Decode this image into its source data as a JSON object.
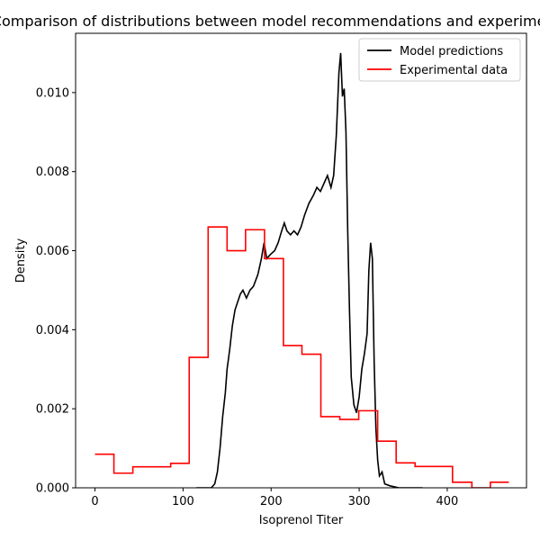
{
  "chart_data": {
    "type": "line",
    "title": "Comparison of distributions between model recommendations and experimental data",
    "xlabel": "Isoprenol Titer",
    "ylabel": "Density",
    "xlim": [
      -22,
      490
    ],
    "ylim": [
      0,
      0.0115
    ],
    "x_ticks": [
      0,
      100,
      200,
      300,
      400
    ],
    "x_tick_labels": [
      "0",
      "100",
      "200",
      "300",
      "400"
    ],
    "y_ticks": [
      0,
      0.002,
      0.004,
      0.006,
      0.008,
      0.01
    ],
    "y_tick_labels": [
      "0.000",
      "0.002",
      "0.004",
      "0.006",
      "0.008",
      "0.010"
    ],
    "grid": false,
    "legend_position": "upper right",
    "series": [
      {
        "name": "Model predictions",
        "color": "#000000",
        "style": "line",
        "points": [
          [
            115,
            0.0
          ],
          [
            132,
            0.0
          ],
          [
            136,
            0.0001
          ],
          [
            139,
            0.0004
          ],
          [
            142,
            0.001
          ],
          [
            145,
            0.0018
          ],
          [
            148,
            0.0024
          ],
          [
            150,
            0.003
          ],
          [
            153,
            0.0035
          ],
          [
            156,
            0.0041
          ],
          [
            159,
            0.0045
          ],
          [
            162,
            0.0047
          ],
          [
            165,
            0.0049
          ],
          [
            168,
            0.005
          ],
          [
            172,
            0.0048
          ],
          [
            176,
            0.005
          ],
          [
            180,
            0.0051
          ],
          [
            185,
            0.0054
          ],
          [
            189,
            0.0058
          ],
          [
            192,
            0.0062
          ],
          [
            195,
            0.0058
          ],
          [
            199,
            0.0059
          ],
          [
            204,
            0.006
          ],
          [
            208,
            0.0062
          ],
          [
            212,
            0.0065
          ],
          [
            215,
            0.0067
          ],
          [
            218,
            0.0065
          ],
          [
            222,
            0.0064
          ],
          [
            226,
            0.0065
          ],
          [
            230,
            0.0064
          ],
          [
            234,
            0.0066
          ],
          [
            238,
            0.0069
          ],
          [
            243,
            0.0072
          ],
          [
            248,
            0.0074
          ],
          [
            252,
            0.0076
          ],
          [
            256,
            0.0075
          ],
          [
            260,
            0.0077
          ],
          [
            264,
            0.0079
          ],
          [
            268,
            0.0076
          ],
          [
            271,
            0.0079
          ],
          [
            274,
            0.0089
          ],
          [
            277,
            0.0105
          ],
          [
            279,
            0.011
          ],
          [
            281,
            0.0099
          ],
          [
            283,
            0.0101
          ],
          [
            285,
            0.009
          ],
          [
            287,
            0.0065
          ],
          [
            289,
            0.0045
          ],
          [
            291,
            0.0028
          ],
          [
            294,
            0.0021
          ],
          [
            297,
            0.0019
          ],
          [
            300,
            0.0023
          ],
          [
            303,
            0.003
          ],
          [
            306,
            0.0034
          ],
          [
            309,
            0.0039
          ],
          [
            311,
            0.0055
          ],
          [
            313,
            0.0062
          ],
          [
            315,
            0.0058
          ],
          [
            317,
            0.0032
          ],
          [
            319,
            0.0015
          ],
          [
            321,
            0.0007
          ],
          [
            323,
            0.0003
          ],
          [
            326,
            0.0004
          ],
          [
            329,
            0.0001
          ],
          [
            335,
            5e-05
          ],
          [
            345,
            0.0
          ],
          [
            372,
            0.0
          ]
        ]
      },
      {
        "name": "Experimental data",
        "color": "#ff0000",
        "style": "step-post",
        "points": [
          [
            0,
            0.00085
          ],
          [
            21.5,
            0.00037
          ],
          [
            43,
            0.00053
          ],
          [
            86,
            0.00062
          ],
          [
            107,
            0.0033
          ],
          [
            128.5,
            0.0066
          ],
          [
            150,
            0.006
          ],
          [
            171,
            0.00653
          ],
          [
            192.5,
            0.0058
          ],
          [
            214,
            0.0036
          ],
          [
            235,
            0.00338
          ],
          [
            256.5,
            0.0018
          ],
          [
            278,
            0.00173
          ],
          [
            299.5,
            0.00195
          ],
          [
            321,
            0.00118
          ],
          [
            342,
            0.00063
          ],
          [
            363.5,
            0.00054
          ],
          [
            406,
            0.00014
          ],
          [
            428,
            0.0
          ],
          [
            449,
            0.00014
          ],
          [
            470,
            0.00014
          ]
        ]
      }
    ]
  }
}
